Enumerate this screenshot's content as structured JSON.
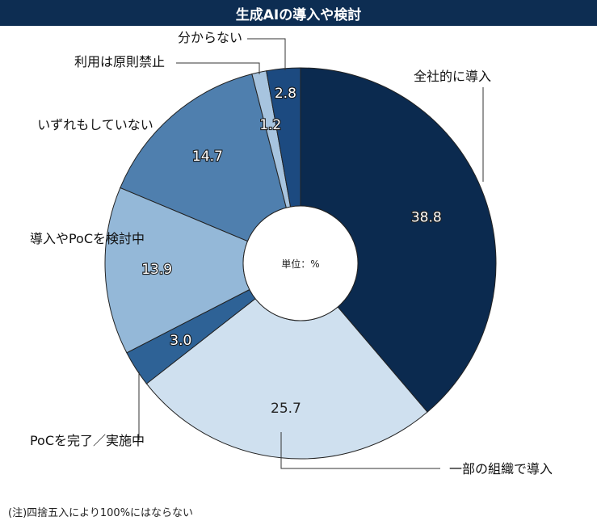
{
  "title": "生成AIの導入や検討",
  "footnote": "(注)四捨五入により100%にはならない",
  "chart_data": {
    "type": "pie",
    "title": "生成AIの導入や検討",
    "center_label": "単位：%",
    "unit": "%",
    "slices": [
      {
        "label": "全社的に導入",
        "value": 38.8,
        "color": "#0b2a4f",
        "value_color": "#ffffff"
      },
      {
        "label": "一部の組織で導入",
        "value": 25.7,
        "color": "#cfe0ef",
        "value_color": "#222222"
      },
      {
        "label": "PoCを完了／実施中",
        "value": 3.0,
        "color": "#2e6296",
        "value_color": "#ffffff"
      },
      {
        "label": "導入やPoCを検討中",
        "value": 13.9,
        "color": "#94b8d8",
        "value_color": "#ffffff"
      },
      {
        "label": "いずれもしていない",
        "value": 14.7,
        "color": "#4f7fae",
        "value_color": "#ffffff"
      },
      {
        "label": "利用は原則禁止",
        "value": 1.2,
        "color": "#a7c4df",
        "value_color": "#ffffff"
      },
      {
        "label": "分からない",
        "value": 2.8,
        "color": "#1c4a80",
        "value_color": "#ffffff"
      }
    ]
  }
}
